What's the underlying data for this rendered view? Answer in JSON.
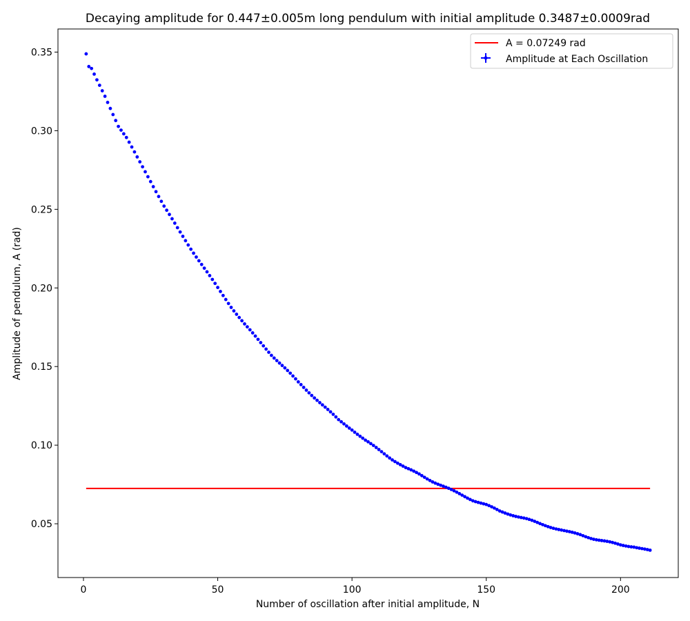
{
  "chart_data": {
    "type": "scatter",
    "title": "Decaying amplitude for 0.447±0.005m long pendulum with initial amplitude 0.3487±0.0009rad",
    "xlabel": "Number of oscillation after initial amplitude, N",
    "ylabel": "Amplitude of pendulum, A (rad)",
    "xlim": [
      -9.5,
      221.5
    ],
    "ylim": [
      0.0158,
      0.3647
    ],
    "xticks": [
      0,
      50,
      100,
      150,
      200
    ],
    "yticks": [
      0.05,
      0.1,
      0.15,
      0.2,
      0.25,
      0.3,
      0.35
    ],
    "ytick_labels": [
      "0.05",
      "0.10",
      "0.15",
      "0.20",
      "0.25",
      "0.30",
      "0.35"
    ],
    "grid": false,
    "legend_position": "top-right",
    "hline": {
      "label": "A = 0.07249 rad",
      "y": 0.07249,
      "x": [
        1,
        211
      ],
      "color": "#ff0000"
    },
    "series": [
      {
        "name": "Amplitude at Each Oscillation",
        "color": "#0000ff",
        "marker": "circle",
        "x_start": 1,
        "x_step": 1,
        "anchors": [
          [
            1,
            0.3487
          ],
          [
            2,
            0.3405
          ],
          [
            3,
            0.3392
          ],
          [
            5,
            0.332
          ],
          [
            8,
            0.322
          ],
          [
            10,
            0.3145
          ],
          [
            13,
            0.303
          ],
          [
            16,
            0.2955
          ],
          [
            20,
            0.283
          ],
          [
            25,
            0.268
          ],
          [
            30,
            0.252
          ],
          [
            35,
            0.238
          ],
          [
            40,
            0.225
          ],
          [
            45,
            0.2125
          ],
          [
            50,
            0.2
          ],
          [
            55,
            0.188
          ],
          [
            60,
            0.177
          ],
          [
            65,
            0.167
          ],
          [
            70,
            0.1575
          ],
          [
            75,
            0.149
          ],
          [
            80,
            0.14
          ],
          [
            85,
            0.132
          ],
          [
            90,
            0.124
          ],
          [
            95,
            0.116
          ],
          [
            100,
            0.11
          ],
          [
            105,
            0.103
          ],
          [
            110,
            0.097
          ],
          [
            115,
            0.091
          ],
          [
            120,
            0.0855
          ],
          [
            125,
            0.0815
          ],
          [
            130,
            0.077
          ],
          [
            135,
            0.073
          ],
          [
            140,
            0.069
          ],
          [
            145,
            0.065
          ],
          [
            150,
            0.062
          ],
          [
            155,
            0.058
          ],
          [
            160,
            0.0555
          ],
          [
            165,
            0.053
          ],
          [
            170,
            0.05
          ],
          [
            175,
            0.0475
          ],
          [
            180,
            0.045
          ],
          [
            185,
            0.043
          ],
          [
            190,
            0.0405
          ],
          [
            195,
            0.0385
          ],
          [
            200,
            0.0365
          ],
          [
            205,
            0.0355
          ],
          [
            211,
            0.0328
          ]
        ]
      }
    ]
  }
}
